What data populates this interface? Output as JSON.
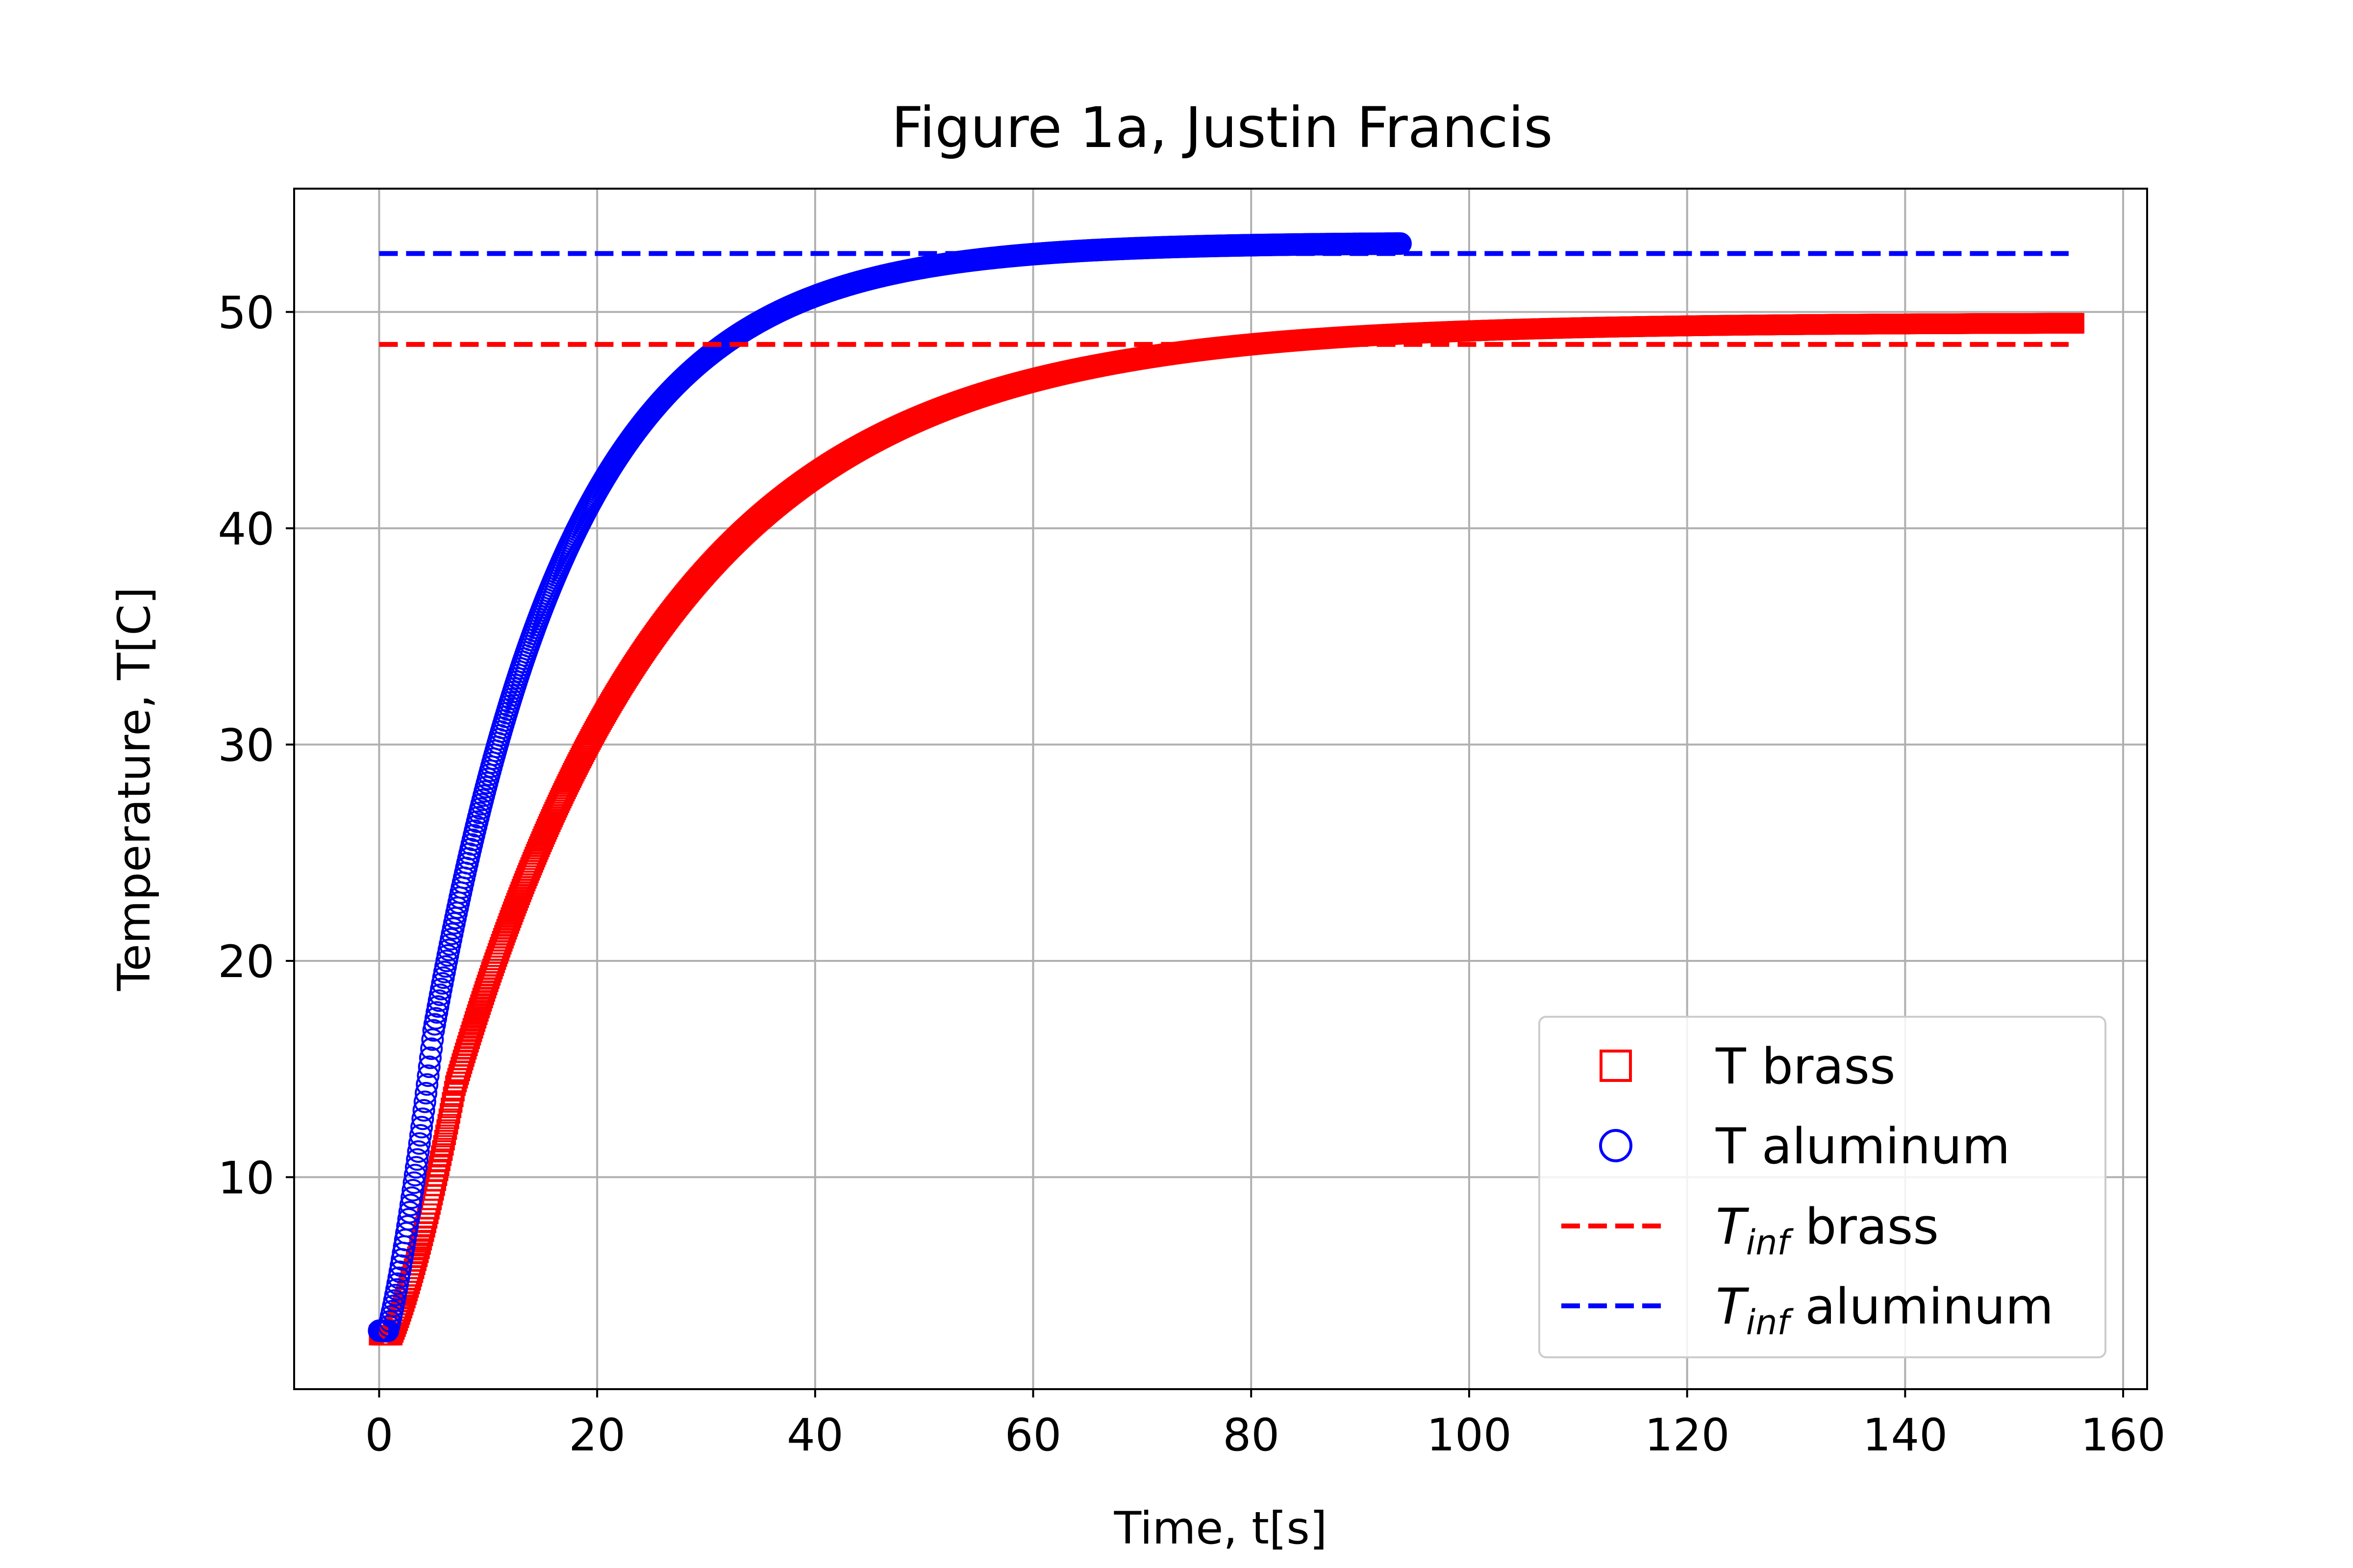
{
  "chart_data": {
    "type": "scatter",
    "title": "Figure 1a, Justin Francis",
    "xlabel": "Time, t[s]",
    "ylabel": "Temperature, T[C]",
    "xlim": [
      -7.8,
      162.2
    ],
    "ylim": [
      0.2,
      55.7
    ],
    "xticks": [
      0,
      20,
      40,
      60,
      80,
      100,
      120,
      140,
      160
    ],
    "yticks": [
      10,
      20,
      30,
      40,
      50
    ],
    "grid": true,
    "legend_position": "lower right",
    "series": [
      {
        "name": "T brass",
        "kind": "markers",
        "marker": "square",
        "color": "#ff0000",
        "t_start": 0,
        "t_end": 155.5,
        "t_step": 0.1,
        "model": {
          "T0": 2.7,
          "Tinf": 49.5,
          "tau": 20.5,
          "lag": 1.2
        },
        "sample_points": [
          {
            "x": 0,
            "y": 2.7
          },
          {
            "x": 10,
            "y": 18.5
          },
          {
            "x": 20,
            "y": 31.0
          },
          {
            "x": 40,
            "y": 42.0
          },
          {
            "x": 60,
            "y": 45.5
          },
          {
            "x": 80,
            "y": 47.0
          },
          {
            "x": 100,
            "y": 47.8
          },
          {
            "x": 120,
            "y": 48.3
          },
          {
            "x": 155,
            "y": 48.8
          }
        ]
      },
      {
        "name": "T aluminum",
        "kind": "markers",
        "marker": "circle",
        "color": "#0000ff",
        "t_start": 0,
        "t_end": 93.7,
        "t_step": 0.1,
        "model": {
          "T0": 2.9,
          "Tinf": 53.2,
          "tau": 13.0,
          "lag": 0.8
        },
        "sample_points": [
          {
            "x": 0,
            "y": 2.9
          },
          {
            "x": 10,
            "y": 25.0
          },
          {
            "x": 20,
            "y": 41.0
          },
          {
            "x": 30,
            "y": 47.5
          },
          {
            "x": 40,
            "y": 50.8
          },
          {
            "x": 60,
            "y": 52.3
          },
          {
            "x": 80,
            "y": 52.8
          },
          {
            "x": 93.7,
            "y": 53.0
          }
        ]
      },
      {
        "name": "brass",
        "legend_prefix": "T",
        "legend_sub": "inf",
        "kind": "line",
        "dash": true,
        "color": "#ff0000",
        "x": [
          0,
          155
        ],
        "y": [
          48.5,
          48.5
        ]
      },
      {
        "name": "aluminum",
        "legend_prefix": "T",
        "legend_sub": "inf",
        "kind": "line",
        "dash": true,
        "color": "#0000ff",
        "x": [
          0,
          155
        ],
        "y": [
          52.7,
          52.7
        ]
      }
    ]
  }
}
